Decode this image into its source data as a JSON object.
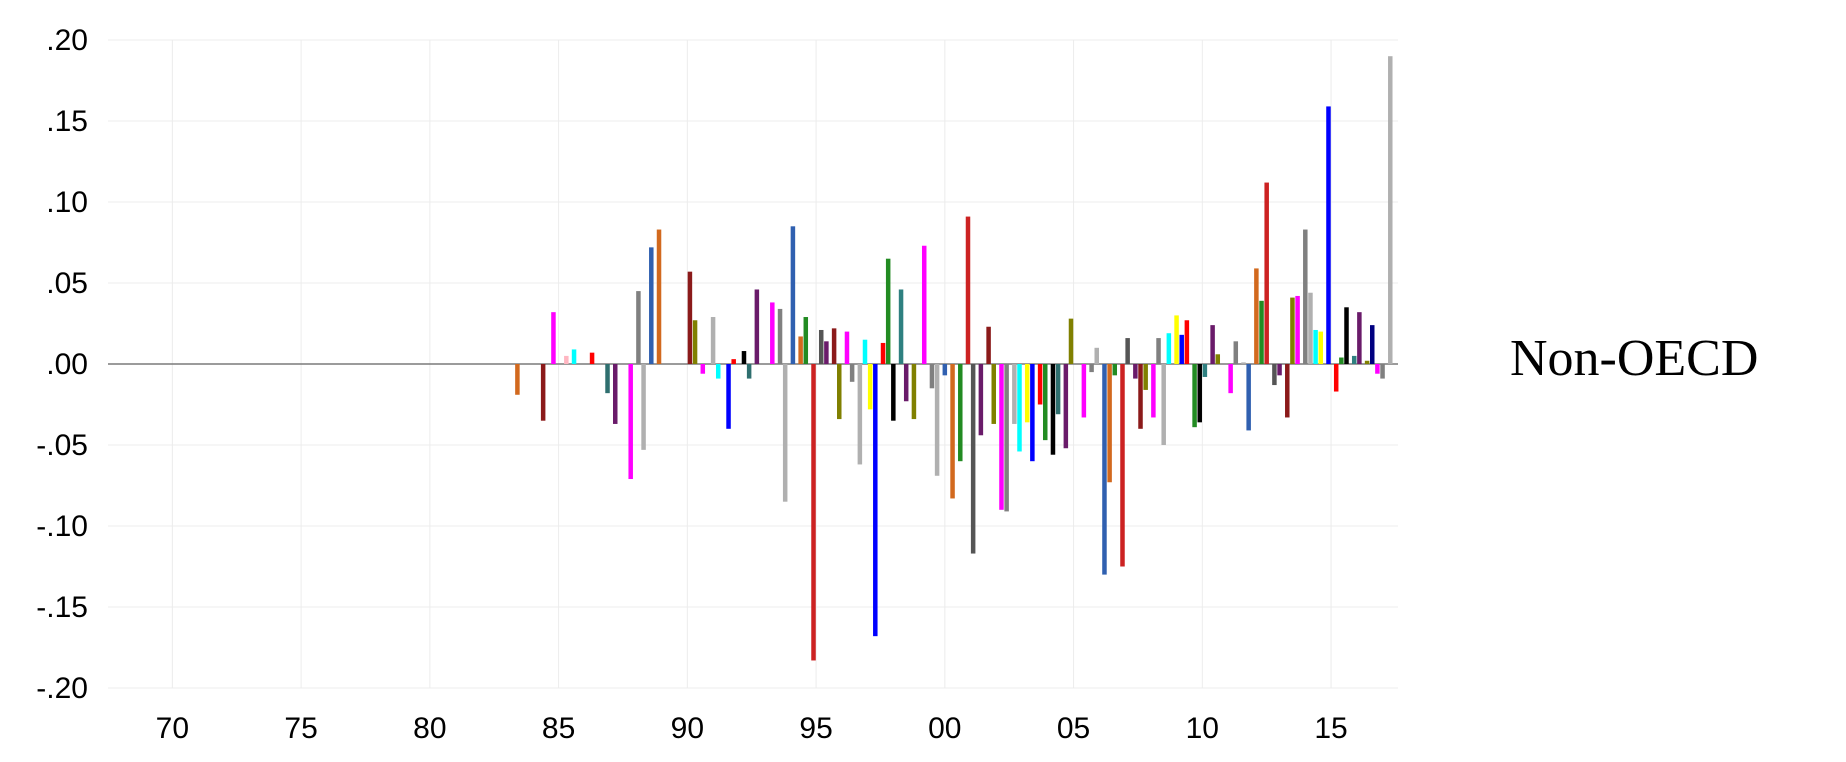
{
  "chart_data": {
    "type": "bar",
    "title": "",
    "xlabel": "",
    "ylabel": "",
    "panel_label": "Non-OECD",
    "xlim": [
      1967.5,
      2017.6
    ],
    "ylim": [
      -0.2,
      0.2
    ],
    "grid": true,
    "x_ticks": [
      {
        "value": 1970,
        "label": "70"
      },
      {
        "value": 1975,
        "label": "75"
      },
      {
        "value": 1980,
        "label": "80"
      },
      {
        "value": 1985,
        "label": "85"
      },
      {
        "value": 1990,
        "label": "90"
      },
      {
        "value": 1995,
        "label": "95"
      },
      {
        "value": 2000,
        "label": "00"
      },
      {
        "value": 2005,
        "label": "05"
      },
      {
        "value": 2010,
        "label": "10"
      },
      {
        "value": 2015,
        "label": "15"
      }
    ],
    "y_ticks": [
      {
        "value": 0.2,
        "label": ".20"
      },
      {
        "value": 0.15,
        "label": ".15"
      },
      {
        "value": 0.1,
        "label": ".10"
      },
      {
        "value": 0.05,
        "label": ".05"
      },
      {
        "value": 0.0,
        "label": ".00"
      },
      {
        "value": -0.05,
        "label": "-.05"
      },
      {
        "value": -0.1,
        "label": "-.10"
      },
      {
        "value": -0.15,
        "label": "-.15"
      },
      {
        "value": -0.2,
        "label": "-.20"
      }
    ],
    "bars": [
      {
        "x": 1983.4,
        "value": -0.019,
        "color": "#d2691e"
      },
      {
        "x": 1984.4,
        "value": -0.035,
        "color": "#8b1a1a"
      },
      {
        "x": 1984.8,
        "value": 0.032,
        "color": "#ff00ff"
      },
      {
        "x": 1985.3,
        "value": 0.005,
        "color": "#ffb6c1"
      },
      {
        "x": 1985.6,
        "value": 0.009,
        "color": "#00ffff"
      },
      {
        "x": 1986.3,
        "value": 0.007,
        "color": "#ff0000"
      },
      {
        "x": 1986.9,
        "value": -0.018,
        "color": "#2f6f6f"
      },
      {
        "x": 1987.2,
        "value": -0.037,
        "color": "#6a1b6a"
      },
      {
        "x": 1987.8,
        "value": -0.071,
        "color": "#ff00ff"
      },
      {
        "x": 1988.1,
        "value": 0.045,
        "color": "#808080"
      },
      {
        "x": 1988.3,
        "value": -0.053,
        "color": "#b0b0b0"
      },
      {
        "x": 1988.6,
        "value": 0.072,
        "color": "#3060b0"
      },
      {
        "x": 1988.9,
        "value": 0.083,
        "color": "#d2691e"
      },
      {
        "x": 1990.1,
        "value": 0.057,
        "color": "#8b1a1a"
      },
      {
        "x": 1990.3,
        "value": 0.027,
        "color": "#808000"
      },
      {
        "x": 1990.6,
        "value": -0.006,
        "color": "#ff00ff"
      },
      {
        "x": 1991.0,
        "value": 0.029,
        "color": "#b0b0b0"
      },
      {
        "x": 1991.2,
        "value": -0.009,
        "color": "#00ffff"
      },
      {
        "x": 1991.6,
        "value": -0.04,
        "color": "#0000ff"
      },
      {
        "x": 1991.8,
        "value": 0.003,
        "color": "#ff0000"
      },
      {
        "x": 1992.2,
        "value": 0.008,
        "color": "#000000"
      },
      {
        "x": 1992.4,
        "value": -0.009,
        "color": "#2f6f6f"
      },
      {
        "x": 1992.7,
        "value": 0.046,
        "color": "#6a1b6a"
      },
      {
        "x": 1993.3,
        "value": 0.038,
        "color": "#ff00ff"
      },
      {
        "x": 1993.6,
        "value": 0.034,
        "color": "#808080"
      },
      {
        "x": 1993.8,
        "value": -0.085,
        "color": "#b0b0b0"
      },
      {
        "x": 1994.1,
        "value": 0.085,
        "color": "#3060b0"
      },
      {
        "x": 1994.4,
        "value": 0.017,
        "color": "#d2691e"
      },
      {
        "x": 1994.6,
        "value": 0.029,
        "color": "#228b22"
      },
      {
        "x": 1994.9,
        "value": -0.183,
        "color": "#cc2222"
      },
      {
        "x": 1995.2,
        "value": 0.021,
        "color": "#555555"
      },
      {
        "x": 1995.4,
        "value": 0.014,
        "color": "#6a1b6a"
      },
      {
        "x": 1995.7,
        "value": 0.022,
        "color": "#8b1a1a"
      },
      {
        "x": 1995.9,
        "value": -0.034,
        "color": "#808000"
      },
      {
        "x": 1996.2,
        "value": 0.02,
        "color": "#ff00ff"
      },
      {
        "x": 1996.4,
        "value": -0.011,
        "color": "#808080"
      },
      {
        "x": 1996.7,
        "value": -0.062,
        "color": "#b0b0b0"
      },
      {
        "x": 1996.9,
        "value": 0.015,
        "color": "#00ffff"
      },
      {
        "x": 1997.1,
        "value": -0.028,
        "color": "#ffff00"
      },
      {
        "x": 1997.3,
        "value": -0.168,
        "color": "#0000ff"
      },
      {
        "x": 1997.6,
        "value": 0.013,
        "color": "#ff0000"
      },
      {
        "x": 1997.8,
        "value": 0.065,
        "color": "#228b22"
      },
      {
        "x": 1998.0,
        "value": -0.035,
        "color": "#000000"
      },
      {
        "x": 1998.3,
        "value": 0.046,
        "color": "#2f8080"
      },
      {
        "x": 1998.5,
        "value": -0.023,
        "color": "#6a1b6a"
      },
      {
        "x": 1998.8,
        "value": -0.034,
        "color": "#808000"
      },
      {
        "x": 1999.2,
        "value": 0.073,
        "color": "#ff00ff"
      },
      {
        "x": 1999.5,
        "value": -0.015,
        "color": "#808080"
      },
      {
        "x": 1999.7,
        "value": -0.069,
        "color": "#b0b0b0"
      },
      {
        "x": 2000.0,
        "value": -0.007,
        "color": "#3060b0"
      },
      {
        "x": 2000.3,
        "value": -0.083,
        "color": "#d2691e"
      },
      {
        "x": 2000.6,
        "value": -0.06,
        "color": "#228b22"
      },
      {
        "x": 2000.9,
        "value": 0.091,
        "color": "#cc2222"
      },
      {
        "x": 2001.1,
        "value": -0.117,
        "color": "#555555"
      },
      {
        "x": 2001.4,
        "value": -0.044,
        "color": "#6a1b6a"
      },
      {
        "x": 2001.7,
        "value": 0.023,
        "color": "#8b1a1a"
      },
      {
        "x": 2001.9,
        "value": -0.037,
        "color": "#808000"
      },
      {
        "x": 2002.2,
        "value": -0.09,
        "color": "#ff00ff"
      },
      {
        "x": 2002.4,
        "value": -0.091,
        "color": "#808080"
      },
      {
        "x": 2002.7,
        "value": -0.037,
        "color": "#b0b0b0"
      },
      {
        "x": 2002.9,
        "value": -0.054,
        "color": "#00ffff"
      },
      {
        "x": 2003.2,
        "value": -0.036,
        "color": "#ffff00"
      },
      {
        "x": 2003.4,
        "value": -0.06,
        "color": "#0000ff"
      },
      {
        "x": 2003.7,
        "value": -0.025,
        "color": "#ff0000"
      },
      {
        "x": 2003.9,
        "value": -0.047,
        "color": "#228b22"
      },
      {
        "x": 2004.2,
        "value": -0.056,
        "color": "#000000"
      },
      {
        "x": 2004.4,
        "value": -0.031,
        "color": "#2f6f6f"
      },
      {
        "x": 2004.7,
        "value": -0.052,
        "color": "#6a1b6a"
      },
      {
        "x": 2004.9,
        "value": 0.028,
        "color": "#808000"
      },
      {
        "x": 2005.4,
        "value": -0.033,
        "color": "#ff00ff"
      },
      {
        "x": 2005.7,
        "value": -0.005,
        "color": "#808080"
      },
      {
        "x": 2005.9,
        "value": 0.01,
        "color": "#b0b0b0"
      },
      {
        "x": 2006.2,
        "value": -0.13,
        "color": "#3060b0"
      },
      {
        "x": 2006.4,
        "value": -0.073,
        "color": "#d2691e"
      },
      {
        "x": 2006.6,
        "value": -0.007,
        "color": "#228b22"
      },
      {
        "x": 2006.9,
        "value": -0.125,
        "color": "#cc2222"
      },
      {
        "x": 2007.1,
        "value": 0.016,
        "color": "#555555"
      },
      {
        "x": 2007.4,
        "value": -0.009,
        "color": "#6a1b6a"
      },
      {
        "x": 2007.6,
        "value": -0.04,
        "color": "#8b1a1a"
      },
      {
        "x": 2007.8,
        "value": -0.016,
        "color": "#808000"
      },
      {
        "x": 2008.1,
        "value": -0.033,
        "color": "#ff00ff"
      },
      {
        "x": 2008.3,
        "value": 0.016,
        "color": "#808080"
      },
      {
        "x": 2008.5,
        "value": -0.05,
        "color": "#b0b0b0"
      },
      {
        "x": 2008.7,
        "value": 0.019,
        "color": "#00ffff"
      },
      {
        "x": 2009.0,
        "value": 0.03,
        "color": "#ffff00"
      },
      {
        "x": 2009.2,
        "value": 0.018,
        "color": "#0000ff"
      },
      {
        "x": 2009.4,
        "value": 0.027,
        "color": "#ff0000"
      },
      {
        "x": 2009.7,
        "value": -0.039,
        "color": "#228b22"
      },
      {
        "x": 2009.9,
        "value": -0.036,
        "color": "#000000"
      },
      {
        "x": 2010.1,
        "value": -0.008,
        "color": "#2f8080"
      },
      {
        "x": 2010.4,
        "value": 0.024,
        "color": "#6a1b6a"
      },
      {
        "x": 2010.6,
        "value": 0.006,
        "color": "#808000"
      },
      {
        "x": 2011.1,
        "value": -0.018,
        "color": "#ff00ff"
      },
      {
        "x": 2011.3,
        "value": 0.014,
        "color": "#808080"
      },
      {
        "x": 2011.6,
        "value": 0.001,
        "color": "#b0b0b0"
      },
      {
        "x": 2011.8,
        "value": -0.041,
        "color": "#3060b0"
      },
      {
        "x": 2012.1,
        "value": 0.059,
        "color": "#d2691e"
      },
      {
        "x": 2012.3,
        "value": 0.039,
        "color": "#228b22"
      },
      {
        "x": 2012.5,
        "value": 0.112,
        "color": "#cc2222"
      },
      {
        "x": 2012.8,
        "value": -0.013,
        "color": "#555555"
      },
      {
        "x": 2013.0,
        "value": -0.007,
        "color": "#6a1b6a"
      },
      {
        "x": 2013.3,
        "value": -0.033,
        "color": "#8b1a1a"
      },
      {
        "x": 2013.5,
        "value": 0.041,
        "color": "#808000"
      },
      {
        "x": 2013.7,
        "value": 0.042,
        "color": "#ff00ff"
      },
      {
        "x": 2014.0,
        "value": 0.083,
        "color": "#808080"
      },
      {
        "x": 2014.2,
        "value": 0.044,
        "color": "#b0b0b0"
      },
      {
        "x": 2014.4,
        "value": 0.021,
        "color": "#00ffff"
      },
      {
        "x": 2014.6,
        "value": 0.02,
        "color": "#ffff00"
      },
      {
        "x": 2014.9,
        "value": 0.159,
        "color": "#0000ff"
      },
      {
        "x": 2015.2,
        "value": -0.017,
        "color": "#ff0000"
      },
      {
        "x": 2015.4,
        "value": 0.004,
        "color": "#228b22"
      },
      {
        "x": 2015.6,
        "value": 0.035,
        "color": "#000000"
      },
      {
        "x": 2015.9,
        "value": 0.005,
        "color": "#2f8080"
      },
      {
        "x": 2016.1,
        "value": 0.032,
        "color": "#6a1b6a"
      },
      {
        "x": 2016.4,
        "value": 0.002,
        "color": "#808000"
      },
      {
        "x": 2016.6,
        "value": 0.024,
        "color": "#000080"
      },
      {
        "x": 2016.8,
        "value": -0.006,
        "color": "#ff00ff"
      },
      {
        "x": 2017.0,
        "value": -0.009,
        "color": "#808080"
      },
      {
        "x": 2017.3,
        "value": 0.19,
        "color": "#b0b0b0"
      }
    ]
  }
}
